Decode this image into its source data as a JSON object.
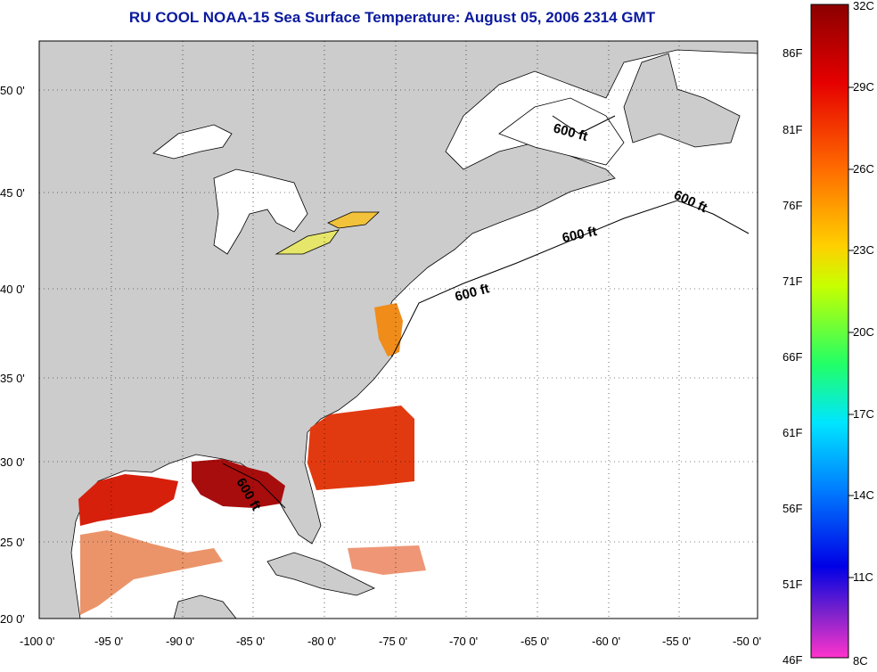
{
  "title": "RU COOL  NOAA-15  Sea Surface Temperature:  August 05, 2006 2314 GMT",
  "map": {
    "lon_ticks": [
      "-100 0'",
      "-95 0'",
      "-90 0'",
      "-85 0'",
      "-80 0'",
      "-75 0'",
      "-70 0'",
      "-65 0'",
      "-60 0'",
      "-55 0'",
      "-50 0'"
    ],
    "lat_ticks": [
      "50 0'",
      "45 0'",
      "40 0'",
      "35 0'",
      "30 0'",
      "25 0'",
      "20 0'"
    ],
    "contour_labels": [
      "600 ft",
      "600 ft",
      "600 ft",
      "600 ft",
      "600 ft"
    ],
    "land_color": "#cccccc",
    "ocean_color": "#ffffff"
  },
  "colorbar": {
    "celsius": [
      "32C",
      "29C",
      "26C",
      "23C",
      "20C",
      "17C",
      "14C",
      "11C",
      "8C"
    ],
    "fahrenheit": [
      "86F",
      "81F",
      "76F",
      "71F",
      "66F",
      "61F",
      "56F",
      "51F",
      "46F"
    ]
  }
}
